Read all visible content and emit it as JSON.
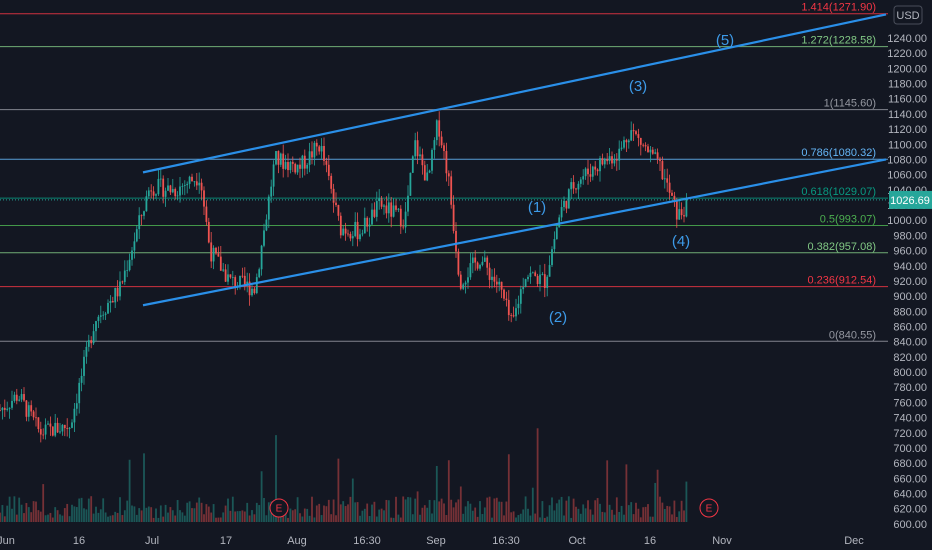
{
  "chart_data": {
    "type": "candlestick",
    "currency": "USD",
    "last_price_label": "1026.69",
    "ylim": [
      592,
      1290
    ],
    "y_ticks": [
      "600.00",
      "620.00",
      "640.00",
      "660.00",
      "680.00",
      "700.00",
      "720.00",
      "740.00",
      "760.00",
      "780.00",
      "800.00",
      "820.00",
      "840.00",
      "860.00",
      "880.00",
      "900.00",
      "920.00",
      "940.00",
      "960.00",
      "980.00",
      "1000.00",
      "1020.00",
      "1040.00",
      "1060.00",
      "1080.00",
      "1100.00",
      "1120.00",
      "1140.00",
      "1160.00",
      "1180.00",
      "1200.00",
      "1220.00",
      "1240.00"
    ],
    "x_ticks": [
      "Jun",
      "16",
      "Jul",
      "17",
      "Aug",
      "16:30",
      "Sep",
      "16:30",
      "Oct",
      "16",
      "Nov",
      "Dec"
    ],
    "fib_levels": [
      {
        "ratio_label": "0",
        "value": 840.55,
        "text": "0(840.55)",
        "color": "#9598a1"
      },
      {
        "ratio_label": "0.236",
        "value": 912.54,
        "text": "0.236(912.54)",
        "color": "#f23645"
      },
      {
        "ratio_label": "0.382",
        "value": 957.08,
        "text": "0.382(957.08)",
        "color": "#81c784"
      },
      {
        "ratio_label": "0.5",
        "value": 993.07,
        "text": "0.5(993.07)",
        "color": "#4caf50"
      },
      {
        "ratio_label": "0.618",
        "value": 1029.07,
        "text": "0.618(1029.07)",
        "color": "#089981"
      },
      {
        "ratio_label": "0.786",
        "value": 1080.32,
        "text": "0.786(1080.32)",
        "color": "#64b5f6"
      },
      {
        "ratio_label": "1",
        "value": 1145.6,
        "text": "1(1145.60)",
        "color": "#9598a1"
      },
      {
        "ratio_label": "1.272",
        "value": 1228.58,
        "text": "1.272(1228.58)",
        "color": "#81c784"
      },
      {
        "ratio_label": "1.414",
        "value": 1271.9,
        "text": "1.414(1271.90)",
        "color": "#f23645"
      }
    ],
    "channel_lines": [
      {
        "name": "upper",
        "from": {
          "x": "Jul",
          "y": 1063
        },
        "to": {
          "x": "Dec",
          "y": 1271
        }
      },
      {
        "name": "lower",
        "from": {
          "x": "Jul",
          "y": 888
        },
        "to": {
          "x": "Dec",
          "y": 1080
        }
      }
    ],
    "wave_labels": [
      "(1)",
      "(2)",
      "(3)",
      "(4)",
      "(5)"
    ],
    "earnings_marker": "E",
    "grid": false
  },
  "axis": {
    "currency_label": "USD"
  }
}
